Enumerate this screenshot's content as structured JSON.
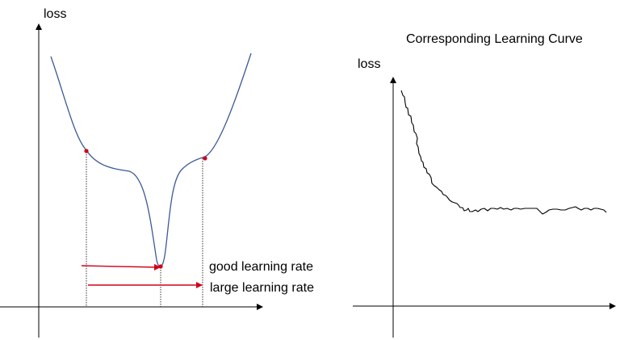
{
  "left_diagram": {
    "y_label": "loss",
    "annotations": {
      "good_learning_rate": "good learning rate",
      "large_learning_rate": "large learning rate"
    },
    "marker_color": "#d0021b",
    "curve_color": "#3d5a94",
    "arrow_color": "#d0021b"
  },
  "right_diagram": {
    "title": "Corresponding Learning Curve",
    "y_label": "loss",
    "curve_color": "#000000"
  }
}
